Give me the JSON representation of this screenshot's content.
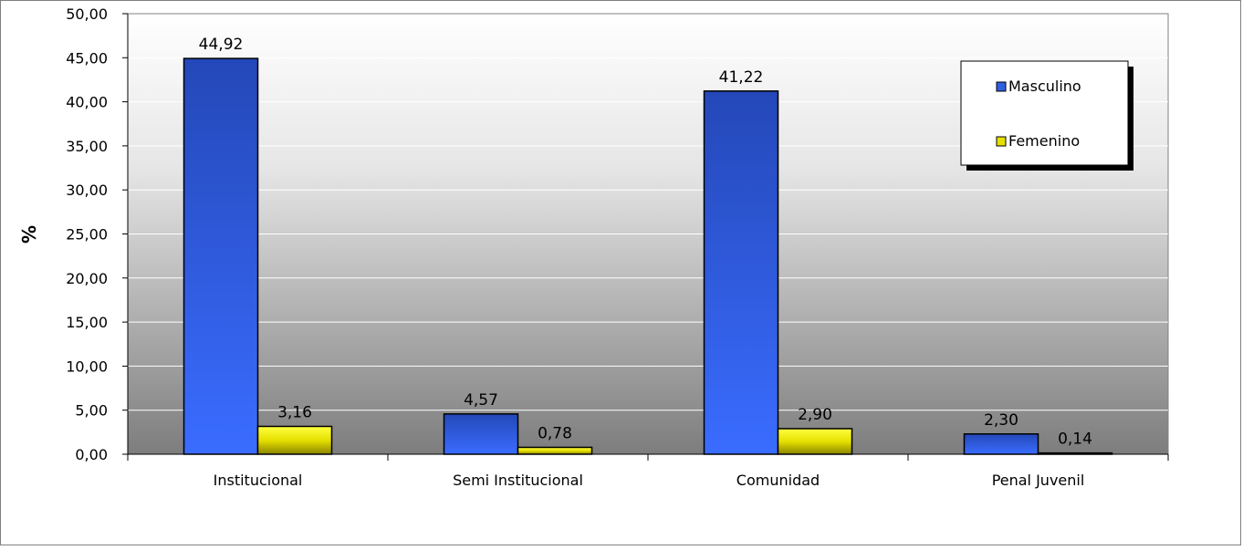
{
  "chart_data": {
    "type": "bar",
    "title": "",
    "xlabel": "",
    "ylabel": "%",
    "ylim": [
      0,
      50
    ],
    "ytick_step": 5,
    "categories": [
      "Institucional",
      "Semi Institucional",
      "Comunidad",
      "Penal Juvenil"
    ],
    "series": [
      {
        "name": "Masculino",
        "values": [
          44.92,
          4.57,
          41.22,
          2.3
        ],
        "labels": [
          "44,92",
          "4,57",
          "41,22",
          "2,30"
        ],
        "color": "#2f5fe0"
      },
      {
        "name": "Femenino",
        "values": [
          3.16,
          0.78,
          2.9,
          0.14
        ],
        "labels": [
          "3,16",
          "0,78",
          "2,90",
          "0,14"
        ],
        "color": "#e6e000"
      }
    ],
    "ytick_labels": [
      "0,00",
      "5,00",
      "10,00",
      "15,00",
      "20,00",
      "25,00",
      "30,00",
      "35,00",
      "40,00",
      "45,00",
      "50,00"
    ],
    "grid": true,
    "legend_position": "top-right",
    "plot_background": "gradient white-to-gray"
  }
}
